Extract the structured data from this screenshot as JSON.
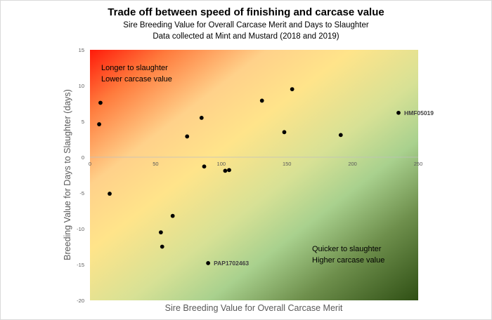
{
  "chart_data": {
    "type": "scatter",
    "title": "Trade off between speed of finishing and carcase value",
    "subtitle_1": "Sire Breeding Value for Overall Carcase Merit and Days to Slaughter",
    "subtitle_2": "Data collected at Mint and Mustard (2018 and 2019)",
    "xlabel": "Sire Breeding Value for Overall Carcase Merit",
    "ylabel": "Breeding Value for Days to Slaughter (days)",
    "xlim": [
      0,
      250
    ],
    "ylim": [
      -20,
      15
    ],
    "xticks": [
      0,
      50,
      100,
      150,
      200,
      250
    ],
    "yticks": [
      15,
      10,
      5,
      0,
      -5,
      -10,
      -15,
      -20
    ],
    "grid": false,
    "background": "gradient red (top-left) to yellow to green (bottom-right)",
    "annotations": {
      "top_left_line1": "Longer to slaughter",
      "top_left_line2": "Lower carcase value",
      "bottom_right_line1": "Quicker to slaughter",
      "bottom_right_line2": "Higher carcase value"
    },
    "points": [
      {
        "x": 8,
        "y": 7.6,
        "label": ""
      },
      {
        "x": 7,
        "y": 4.6,
        "label": ""
      },
      {
        "x": 74,
        "y": 2.9,
        "label": ""
      },
      {
        "x": 85,
        "y": 5.5,
        "label": ""
      },
      {
        "x": 87,
        "y": -1.3,
        "label": ""
      },
      {
        "x": 103,
        "y": -1.9,
        "label": ""
      },
      {
        "x": 106,
        "y": -1.8,
        "label": ""
      },
      {
        "x": 131,
        "y": 7.9,
        "label": ""
      },
      {
        "x": 148,
        "y": 3.5,
        "label": ""
      },
      {
        "x": 154,
        "y": 9.5,
        "label": ""
      },
      {
        "x": 191,
        "y": 3.1,
        "label": ""
      },
      {
        "x": 235,
        "y": 6.2,
        "label": "HMF05019"
      },
      {
        "x": 15,
        "y": -5.1,
        "label": ""
      },
      {
        "x": 63,
        "y": -8.2,
        "label": ""
      },
      {
        "x": 54,
        "y": -10.5,
        "label": ""
      },
      {
        "x": 55,
        "y": -12.5,
        "label": ""
      },
      {
        "x": 90,
        "y": -14.8,
        "label": "PAP1702463"
      }
    ],
    "colors": {
      "marker": "#000000",
      "red": "#ff1a0a",
      "yellow": "#ffe48a",
      "green": "#a9d18e",
      "dark_green": "#2f4f14"
    }
  }
}
